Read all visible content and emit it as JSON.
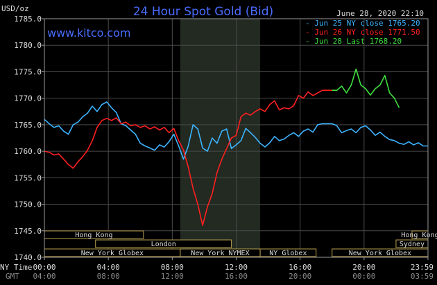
{
  "chart_data": {
    "type": "line",
    "title": "24 Hour Spot Gold (Bid)",
    "ylabel": "USD/oz",
    "ylim": [
      1740,
      1785
    ],
    "yticks": [
      "1785.0",
      "1780.0",
      "1775.0",
      "1770.0",
      "1765.0",
      "1760.0",
      "1755.0",
      "1750.0",
      "1745.0",
      "1740.0"
    ],
    "xticks_ny": [
      "00:00",
      "04:00",
      "08:00",
      "12:00",
      "16:00",
      "20:00",
      "23:59"
    ],
    "xticks_gmt": [
      "04:00",
      "08:00",
      "12:00",
      "16:00",
      "20:00",
      "00:00",
      "03:59"
    ],
    "x_label_ny": "NY Time",
    "x_label_gmt": "GMT",
    "timestamp": "June 28, 2020 22:10",
    "website": "www.kitco.com",
    "grid": true,
    "highlight_region_hours": [
      8.5,
      13.5
    ],
    "series": [
      {
        "name": "Jun 25 NY close 1765.20",
        "color": "#3cb4ff",
        "x": [
          0,
          0.3,
          0.6,
          0.9,
          1.2,
          1.5,
          1.8,
          2.1,
          2.4,
          2.7,
          3.0,
          3.3,
          3.6,
          3.9,
          4.2,
          4.5,
          4.8,
          5.1,
          5.4,
          5.7,
          6.0,
          6.3,
          6.6,
          6.9,
          7.2,
          7.5,
          7.8,
          8.1,
          8.4,
          8.7,
          9.0,
          9.3,
          9.6,
          9.9,
          10.2,
          10.5,
          10.8,
          11.1,
          11.4,
          11.7,
          12.0,
          12.3,
          12.6,
          12.9,
          13.2,
          13.5,
          13.8,
          14.1,
          14.4,
          14.7,
          15.0,
          15.3,
          15.6,
          15.9,
          16.2,
          16.5,
          16.8,
          17.1,
          17.4,
          17.7,
          18.0,
          18.3,
          18.6,
          18.9,
          19.2,
          19.5,
          19.8,
          20.1,
          20.4,
          20.7,
          21.0,
          21.3,
          21.6,
          21.9,
          22.2,
          22.5,
          22.8,
          23.1,
          23.4,
          23.7,
          23.99
        ],
        "y": [
          1766.0,
          1765.2,
          1764.5,
          1764.8,
          1763.8,
          1763.2,
          1765.0,
          1765.5,
          1766.5,
          1767.2,
          1768.5,
          1767.5,
          1768.8,
          1769.3,
          1768.2,
          1767.3,
          1765.2,
          1764.8,
          1764.0,
          1763.2,
          1761.5,
          1761.0,
          1760.6,
          1760.2,
          1761.2,
          1760.8,
          1761.8,
          1763.2,
          1761.0,
          1758.5,
          1761.0,
          1765.0,
          1764.2,
          1760.6,
          1760.0,
          1762.5,
          1761.5,
          1763.8,
          1764.2,
          1760.5,
          1761.2,
          1762.0,
          1764.3,
          1763.5,
          1762.6,
          1761.5,
          1760.8,
          1761.6,
          1762.8,
          1762.0,
          1762.3,
          1763.0,
          1763.5,
          1762.8,
          1763.8,
          1764.2,
          1763.6,
          1765.0,
          1765.2,
          1765.2,
          1765.2,
          1764.8,
          1763.5,
          1763.9,
          1764.2,
          1763.5,
          1764.5,
          1764.8,
          1764.0,
          1763.0,
          1763.6,
          1762.8,
          1762.2,
          1762.0,
          1761.5,
          1761.3,
          1761.8,
          1761.2,
          1761.6,
          1761.0,
          1761.0
        ]
      },
      {
        "name": "Jun 26 NY close 1771.50",
        "color": "#ff2020",
        "x": [
          0,
          0.3,
          0.6,
          0.9,
          1.2,
          1.5,
          1.8,
          2.1,
          2.4,
          2.7,
          3.0,
          3.3,
          3.6,
          3.9,
          4.2,
          4.5,
          4.8,
          5.1,
          5.4,
          5.7,
          6.0,
          6.3,
          6.6,
          6.9,
          7.2,
          7.5,
          7.8,
          8.1,
          8.4,
          8.7,
          9.0,
          9.3,
          9.6,
          9.9,
          10.2,
          10.5,
          10.8,
          11.1,
          11.4,
          11.7,
          12.0,
          12.3,
          12.6,
          12.9,
          13.2,
          13.5,
          13.8,
          14.1,
          14.4,
          14.7,
          15.0,
          15.3,
          15.6,
          15.9,
          16.2,
          16.5,
          16.8,
          17.1,
          17.4,
          17.7,
          18.0
        ],
        "y": [
          1760.0,
          1759.8,
          1759.3,
          1759.5,
          1758.5,
          1757.5,
          1756.8,
          1758.0,
          1759.0,
          1760.2,
          1762.0,
          1764.5,
          1765.8,
          1766.2,
          1765.8,
          1766.3,
          1765.2,
          1765.5,
          1764.8,
          1765.0,
          1764.5,
          1764.8,
          1764.2,
          1764.6,
          1764.0,
          1764.5,
          1763.5,
          1764.3,
          1762.0,
          1760.2,
          1757.0,
          1753.0,
          1750.0,
          1746.0,
          1749.5,
          1752.0,
          1756.0,
          1758.5,
          1760.5,
          1762.5,
          1763.0,
          1766.5,
          1767.2,
          1766.8,
          1767.5,
          1768.0,
          1767.5,
          1768.8,
          1769.5,
          1767.8,
          1768.2,
          1768.0,
          1768.6,
          1770.5,
          1770.0,
          1771.2,
          1770.5,
          1771.0,
          1771.5,
          1771.5,
          1771.5
        ]
      },
      {
        "name": "Jun 28 Last 1768.20",
        "color": "#40e040",
        "x": [
          18.0,
          18.3,
          18.6,
          18.9,
          19.2,
          19.5,
          19.8,
          20.1,
          20.4,
          20.7,
          21.0,
          21.3,
          21.6,
          21.9,
          22.2
        ],
        "y": [
          1771.5,
          1771.5,
          1772.3,
          1771.0,
          1772.5,
          1775.5,
          1772.5,
          1771.8,
          1770.6,
          1771.8,
          1772.5,
          1774.3,
          1771.0,
          1770.0,
          1768.2
        ]
      }
    ]
  },
  "sessions": [
    {
      "label": "Hong Kong",
      "start": 0.0,
      "end": 6.2,
      "row": 0
    },
    {
      "label": "Hong Kong",
      "start": 23.0,
      "end": 24.0,
      "row": 0
    },
    {
      "label": "London",
      "start": 3.2,
      "end": 11.7,
      "row": 1
    },
    {
      "label": "Sydney",
      "start": 22.0,
      "end": 24.0,
      "row": 1
    },
    {
      "label": "New York Globex",
      "start": 0.0,
      "end": 8.5,
      "row": 2
    },
    {
      "label": "New York NYMEX",
      "start": 8.5,
      "end": 13.5,
      "row": 2
    },
    {
      "label": "NY Globex",
      "start": 13.5,
      "end": 17.0,
      "row": 2
    },
    {
      "label": "New York Globex",
      "start": 18.0,
      "end": 24.0,
      "row": 2
    }
  ]
}
